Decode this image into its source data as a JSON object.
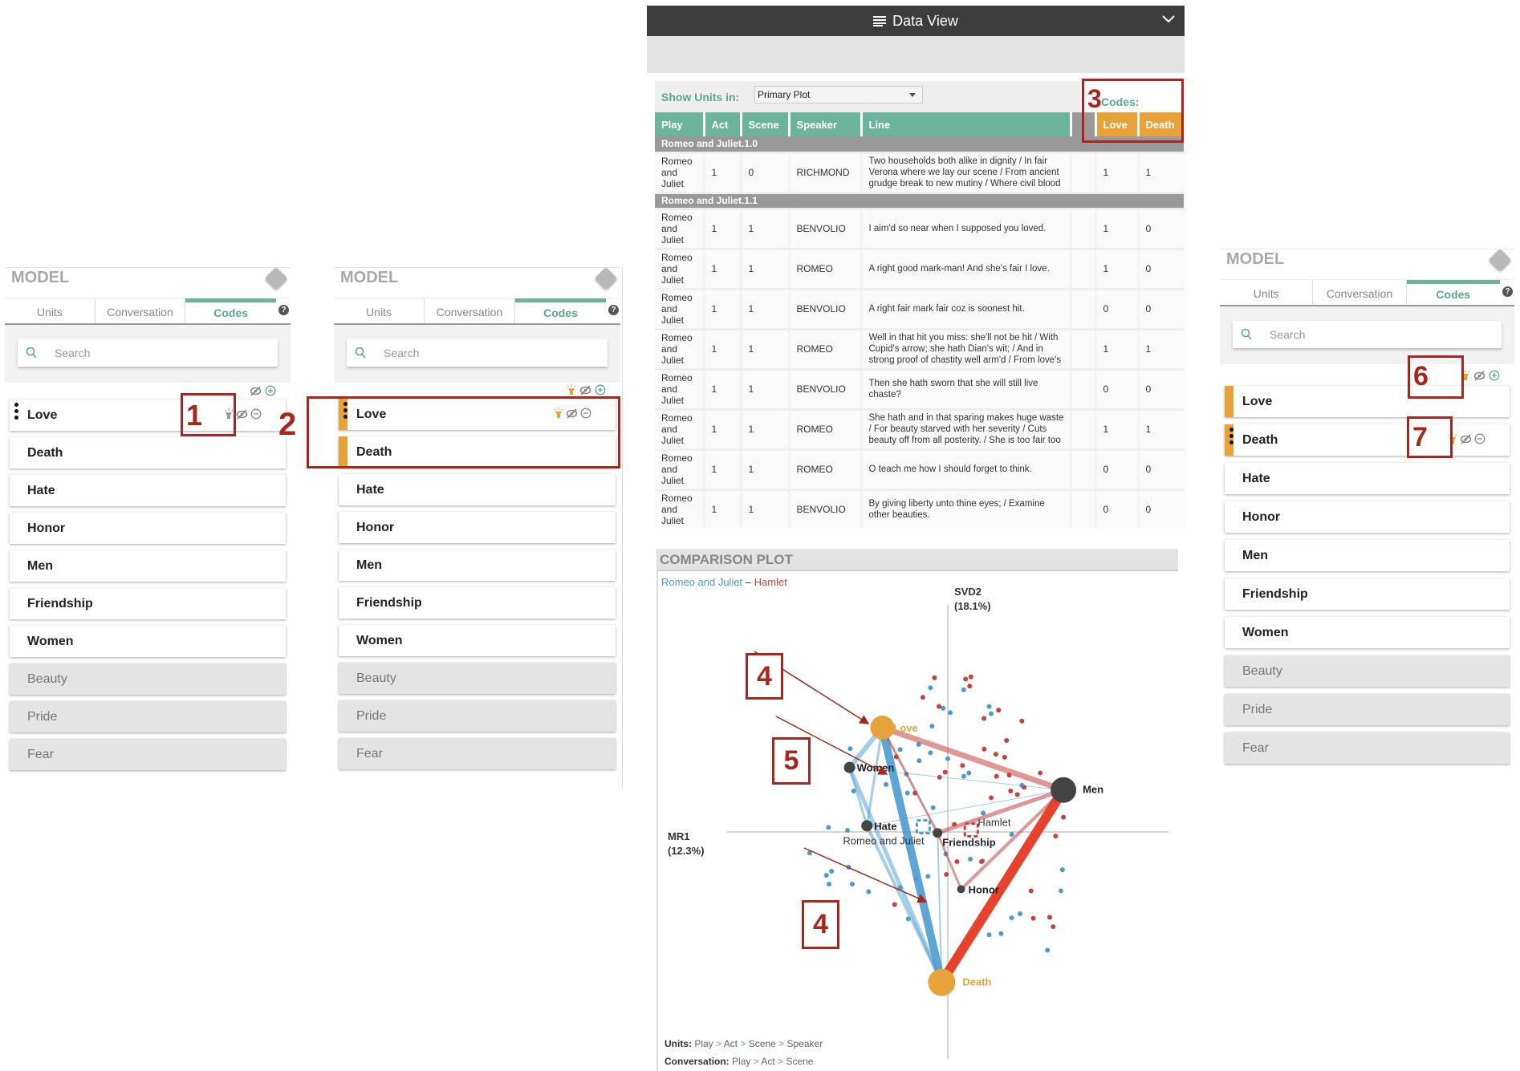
{
  "model_panels": [
    {
      "title": "MODEL",
      "tabs": [
        "Units",
        "Conversation",
        "Codes"
      ],
      "active_tab": "Codes",
      "search_placeholder": "Search",
      "header_icons": [
        "eye-slash-icon",
        "plus-circle-icon"
      ],
      "items": [
        {
          "label": "Love",
          "handle": true,
          "colored": false,
          "icons": [
            "bulb-gray",
            "eye-slash",
            "minus"
          ]
        },
        {
          "label": "Death"
        },
        {
          "label": "Hate"
        },
        {
          "label": "Honor"
        },
        {
          "label": "Men"
        },
        {
          "label": "Friendship"
        },
        {
          "label": "Women"
        },
        {
          "label": "Beauty",
          "disabled": true
        },
        {
          "label": "Pride",
          "disabled": true
        },
        {
          "label": "Fear",
          "disabled": true
        }
      ]
    },
    {
      "title": "MODEL",
      "tabs": [
        "Units",
        "Conversation",
        "Codes"
      ],
      "active_tab": "Codes",
      "search_placeholder": "Search",
      "header_icons": [
        "bulb-orange-icon",
        "eye-slash-icon",
        "plus-circle-icon"
      ],
      "items": [
        {
          "label": "Love",
          "handle": true,
          "colored": true,
          "icons": [
            "bulb-orange",
            "eye-slash",
            "minus"
          ]
        },
        {
          "label": "Death",
          "colored": true
        },
        {
          "label": "Hate"
        },
        {
          "label": "Honor"
        },
        {
          "label": "Men"
        },
        {
          "label": "Friendship"
        },
        {
          "label": "Women"
        },
        {
          "label": "Beauty",
          "disabled": true
        },
        {
          "label": "Pride",
          "disabled": true
        },
        {
          "label": "Fear",
          "disabled": true
        }
      ]
    },
    {
      "title": "MODEL",
      "tabs": [
        "Units",
        "Conversation",
        "Codes"
      ],
      "active_tab": "Codes",
      "search_placeholder": "Search",
      "header_icons": [
        "bulb-orange-icon",
        "eye-slash-icon",
        "plus-circle-icon"
      ],
      "items": [
        {
          "label": "Love",
          "colored": true
        },
        {
          "label": "Death",
          "handle": true,
          "colored": true,
          "icons": [
            "bulb-orange",
            "eye-slash",
            "minus"
          ]
        },
        {
          "label": "Hate"
        },
        {
          "label": "Honor"
        },
        {
          "label": "Men"
        },
        {
          "label": "Friendship"
        },
        {
          "label": "Women"
        },
        {
          "label": "Beauty",
          "disabled": true
        },
        {
          "label": "Pride",
          "disabled": true
        },
        {
          "label": "Fear",
          "disabled": true
        }
      ]
    }
  ],
  "data_view": {
    "title": "Data View",
    "show_units_label": "Show Units in:",
    "show_units_value": "Primary Plot",
    "codes_label": "Codes:",
    "columns": [
      "Play",
      "Act",
      "Scene",
      "Speaker",
      "Line"
    ],
    "code_columns": [
      "Love",
      "Death"
    ],
    "groups": [
      {
        "name": "Romeo and Juliet.1.0",
        "rows": [
          [
            "Romeo and Juliet",
            "1",
            "0",
            "RICHMOND",
            "Two households both alike in dignity / In fair Verona where we lay our scene / From ancient grudge break to new mutiny / Where civil blood makes civil hands unclean",
            "1",
            "1"
          ]
        ]
      },
      {
        "name": "Romeo and Juliet.1.1",
        "rows": [
          [
            "Romeo and Juliet",
            "1",
            "1",
            "BENVOLIO",
            "I aim'd so near when I supposed you loved.",
            "1",
            "0"
          ],
          [
            "Romeo and Juliet",
            "1",
            "1",
            "ROMEO",
            "A right good mark-man! And she's fair I love.",
            "1",
            "0"
          ],
          [
            "Romeo and Juliet",
            "1",
            "1",
            "BENVOLIO",
            "A right fair mark fair coz is soonest hit.",
            "0",
            "0"
          ],
          [
            "Romeo and Juliet",
            "1",
            "1",
            "ROMEO",
            "Well in that hit you miss: she'll not be hit / With Cupid's arrow; she hath Dian's wit; / And in strong proof of chastity well arm'd / From love's weak childish bow she lives unharm'd",
            "1",
            "1"
          ],
          [
            "Romeo and Juliet",
            "1",
            "1",
            "BENVOLIO",
            "Then she hath sworn that she will still live chaste?",
            "0",
            "0"
          ],
          [
            "Romeo and Juliet",
            "1",
            "1",
            "ROMEO",
            "She hath and in that sparing makes huge waste / For beauty starved with her severity / Cuts beauty off from all posterity. / She is too fair too wise wisely too fair",
            "1",
            "1"
          ],
          [
            "Romeo and Juliet",
            "1",
            "1",
            "ROMEO",
            "O teach me how I should forget to think.",
            "0",
            "0"
          ],
          [
            "Romeo and Juliet",
            "1",
            "1",
            "BENVOLIO",
            "By giving liberty unto thine eyes; / Examine other beauties.",
            "0",
            "0"
          ]
        ]
      }
    ]
  },
  "comparison_plot": {
    "title": "COMPARISON PLOT",
    "legend": {
      "group_a": "Romeo and Juliet",
      "separator": "–",
      "group_b": "Hamlet"
    },
    "footer": {
      "units_label": "Units:",
      "units_path": [
        "Play",
        "Act",
        "Scene",
        "Speaker"
      ],
      "conversation_label": "Conversation:",
      "conversation_path": [
        "Play",
        "Act",
        "Scene"
      ]
    }
  },
  "chart_data": {
    "type": "scatter",
    "xlabel": [
      "MR1",
      "(12.3%)"
    ],
    "ylabel": [
      "SVD2",
      "(18.1%)"
    ],
    "xlim": [
      -1.08,
      1.08
    ],
    "ylim": [
      -1.11,
      1.11
    ],
    "colors": {
      "group_a": "#4a9bd1",
      "group_b": "#c9413a",
      "highlight": "#e8a23a",
      "node": "#444444",
      "strong_b": "#e8412c"
    },
    "nodes": [
      {
        "name": "Love",
        "x": -0.32,
        "y": 0.51,
        "size": 3,
        "highlight": true
      },
      {
        "name": "Death",
        "x": -0.03,
        "y": -0.735,
        "size": 3.4,
        "highlight": true
      },
      {
        "name": "Men",
        "x": 0.565,
        "y": 0.205,
        "size": 3.2
      },
      {
        "name": "Women",
        "x": -0.48,
        "y": 0.315,
        "size": 1.4
      },
      {
        "name": "Hate",
        "x": -0.395,
        "y": 0.03,
        "size": 1.4
      },
      {
        "name": "Friendship",
        "x": -0.05,
        "y": -0.005,
        "size": 1.2
      },
      {
        "name": "Honor",
        "x": 0.065,
        "y": -0.28,
        "size": 1
      }
    ],
    "centroids": [
      {
        "name": "Romeo and Juliet",
        "x": -0.12,
        "y": 0.025,
        "group": "a"
      },
      {
        "name": "Hamlet",
        "x": 0.115,
        "y": 0.01,
        "group": "b"
      }
    ],
    "edges_a": [
      [
        "Love",
        "Death",
        10
      ],
      [
        "Love",
        "Women",
        6
      ],
      [
        "Women",
        "Death",
        5
      ],
      [
        "Hate",
        "Death",
        4
      ],
      [
        "Women",
        "Hate",
        3
      ],
      [
        "Love",
        "Hate",
        3
      ],
      [
        "Friendship",
        "Death",
        2
      ],
      [
        "Women",
        "Men",
        1
      ],
      [
        "Hate",
        "Men",
        1
      ],
      [
        "Love",
        "Friendship",
        1
      ]
    ],
    "edges_b": [
      [
        "Men",
        "Death",
        12
      ],
      [
        "Love",
        "Men",
        7
      ],
      [
        "Men",
        "Friendship",
        5
      ],
      [
        "Men",
        "Honor",
        4
      ],
      [
        "Love",
        "Friendship",
        3
      ],
      [
        "Friendship",
        "Honor",
        3
      ]
    ],
    "points_a": [
      [
        -0.085,
        0.705
      ],
      [
        0.078,
        0.695
      ],
      [
        -0.023,
        0.605
      ],
      [
        0.012,
        0.583
      ],
      [
        -0.077,
        0.517
      ],
      [
        0.202,
        0.613
      ],
      [
        0.212,
        0.578
      ],
      [
        -0.142,
        0.428
      ],
      [
        -0.233,
        0.403
      ],
      [
        -0.085,
        0.387
      ],
      [
        0,
        0.358
      ],
      [
        -0.477,
        0.407
      ],
      [
        -0.14,
        0.348
      ],
      [
        0.078,
        0.272
      ],
      [
        0.103,
        0.288
      ],
      [
        -0.202,
        0.283
      ],
      [
        -0.197,
        0.19
      ],
      [
        0.362,
        0.228
      ],
      [
        -0.46,
        0.2
      ],
      [
        -0.302,
        0.232
      ],
      [
        -0.072,
        0.118
      ],
      [
        0.173,
        0.092
      ],
      [
        -0.583,
        0.022
      ],
      [
        -0.49,
        0.008
      ],
      [
        -0.675,
        -0.103
      ],
      [
        -0.568,
        -0.192
      ],
      [
        -0.593,
        -0.212
      ],
      [
        -0.485,
        -0.172
      ],
      [
        -0.58,
        -0.255
      ],
      [
        -0.467,
        -0.255
      ],
      [
        -0.387,
        -0.292
      ],
      [
        -0.097,
        -0.217
      ],
      [
        -0.232,
        -0.272
      ],
      [
        -0.193,
        -0.425
      ],
      [
        -0.155,
        -0.23
      ],
      [
        -0.01,
        -0.108
      ],
      [
        0.11,
        -0.133
      ],
      [
        0.17,
        -0.142
      ],
      [
        0.312,
        -0.012
      ],
      [
        0.56,
        -0.185
      ],
      [
        0.553,
        -0.288
      ],
      [
        0.312,
        -0.42
      ],
      [
        0.353,
        -0.4
      ],
      [
        0.202,
        -0.503
      ],
      [
        0.26,
        -0.497
      ],
      [
        0.487,
        -0.578
      ]
    ],
    "points_b": [
      [
        -0.065,
        0.753
      ],
      [
        0.087,
        0.747
      ],
      [
        0.113,
        0.758
      ],
      [
        0.107,
        0.713
      ],
      [
        -0.122,
        0.658
      ],
      [
        -0.043,
        0.613
      ],
      [
        0.248,
        0.595
      ],
      [
        0.177,
        0.555
      ],
      [
        0.362,
        0.542
      ],
      [
        0.287,
        0.447
      ],
      [
        0.178,
        0.405
      ],
      [
        0.235,
        0.38
      ],
      [
        0.278,
        0.365
      ],
      [
        0.072,
        0.325
      ],
      [
        0.238,
        0.272
      ],
      [
        0.3,
        0.278
      ],
      [
        0.452,
        0.288
      ],
      [
        0.373,
        0.218
      ],
      [
        0.307,
        0.2
      ],
      [
        0.34,
        0.183
      ],
      [
        0.212,
        0.167
      ],
      [
        -0.013,
        0.292
      ],
      [
        -0.04,
        0.267
      ],
      [
        -0.252,
        0.367
      ],
      [
        -0.16,
        0.19
      ],
      [
        0.032,
        0.037
      ],
      [
        0.527,
        -0.02
      ],
      [
        0.565,
        0.072
      ],
      [
        0.045,
        -0.145
      ],
      [
        0.165,
        -0.145
      ],
      [
        -0.007,
        -0.208
      ],
      [
        0.407,
        -0.288
      ],
      [
        0.418,
        -0.422
      ],
      [
        0.498,
        -0.417
      ],
      [
        0.515,
        -0.463
      ],
      [
        -0.26,
        -0.355
      ]
    ]
  },
  "annotations": [
    "1",
    "2",
    "3",
    "4",
    "5",
    "4",
    "6",
    "7"
  ]
}
